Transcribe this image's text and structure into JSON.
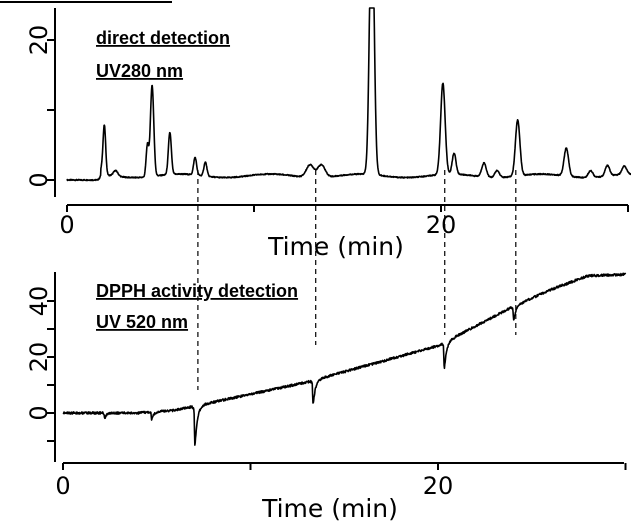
{
  "chart_data": [
    {
      "type": "line",
      "name": "direct_detection",
      "annotation_lines": [
        "direct detection",
        "UV280 nm"
      ],
      "xlabel": "Time (min)",
      "xlim": [
        0,
        30.5
      ],
      "ylim": [
        -2,
        26
      ],
      "x_ticks": [
        0,
        20
      ],
      "x_tick_labels": [
        "0",
        "20"
      ],
      "y_ticks": [
        0,
        20
      ],
      "y_tick_labels": [
        "0",
        "20"
      ],
      "baseline": 0.0,
      "x_start": 0.0,
      "x_end": 30.5,
      "peaks": [
        {
          "x": 1.9,
          "y": 1.0,
          "w": 0.1
        },
        {
          "x": 2.0,
          "y": 6.5,
          "w": 0.07
        },
        {
          "x": 2.6,
          "y": 0.8,
          "w": 0.12
        },
        {
          "x": 4.3,
          "y": 4.5,
          "w": 0.07
        },
        {
          "x": 4.55,
          "y": 13.0,
          "w": 0.09
        },
        {
          "x": 5.5,
          "y": 6.0,
          "w": 0.08
        },
        {
          "x": 6.85,
          "y": 2.5,
          "w": 0.08
        },
        {
          "x": 7.4,
          "y": 2.0,
          "w": 0.08
        },
        {
          "x": 13.0,
          "y": 1.8,
          "w": 0.2
        },
        {
          "x": 13.6,
          "y": 1.8,
          "w": 0.2
        },
        {
          "x": 16.3,
          "y": 40.0,
          "w": 0.12
        },
        {
          "x": 20.1,
          "y": 13.0,
          "w": 0.12
        },
        {
          "x": 20.7,
          "y": 3.0,
          "w": 0.1
        },
        {
          "x": 22.3,
          "y": 2.0,
          "w": 0.12
        },
        {
          "x": 23.0,
          "y": 1.0,
          "w": 0.12
        },
        {
          "x": 24.1,
          "y": 8.0,
          "w": 0.12
        },
        {
          "x": 26.7,
          "y": 4.0,
          "w": 0.12
        },
        {
          "x": 28.0,
          "y": 1.0,
          "w": 0.12
        },
        {
          "x": 28.9,
          "y": 1.5,
          "w": 0.12
        },
        {
          "x": 29.8,
          "y": 1.2,
          "w": 0.12
        }
      ]
    },
    {
      "type": "line",
      "name": "dpph_activity_detection",
      "annotation_lines": [
        "DPPH activity detection",
        "UV 520 nm"
      ],
      "xlabel": "Time (min)",
      "xlim": [
        0,
        30.5
      ],
      "ylim": [
        -18,
        51
      ],
      "x_ticks": [
        0,
        20
      ],
      "x_tick_labels": [
        "0",
        "20"
      ],
      "y_ticks": [
        0,
        20,
        40
      ],
      "y_tick_labels": [
        "0",
        "20",
        "40"
      ],
      "baseline_points": [
        [
          0,
          0
        ],
        [
          4,
          0
        ],
        [
          6,
          1
        ],
        [
          13,
          11
        ],
        [
          20,
          24
        ],
        [
          24,
          38
        ],
        [
          26,
          44
        ],
        [
          28,
          49
        ],
        [
          30,
          49.5
        ]
      ],
      "dips": [
        {
          "x": 2.2,
          "depth": 3.0,
          "w": 0.1
        },
        {
          "x": 4.7,
          "depth": 4.0,
          "w": 0.12
        },
        {
          "x": 7.0,
          "depth": 20.0,
          "w": 0.14
        },
        {
          "x": 13.3,
          "depth": 12.0,
          "w": 0.14
        },
        {
          "x": 20.3,
          "depth": 13.0,
          "w": 0.14
        },
        {
          "x": 24.0,
          "depth": 7.0,
          "w": 0.14
        }
      ]
    }
  ],
  "guide_times": [
    7.0,
    13.3,
    20.2,
    24.0
  ]
}
